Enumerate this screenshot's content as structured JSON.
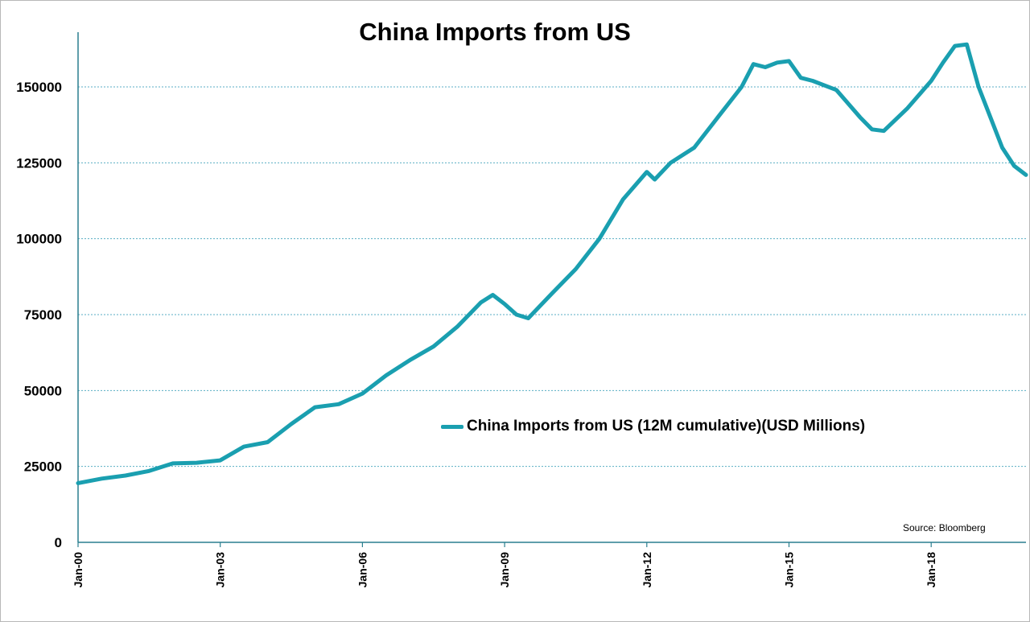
{
  "chart_data": {
    "type": "line",
    "title": "China Imports from US",
    "xlabel": "",
    "ylabel": "",
    "x_tick_labels": [
      "Jan-00",
      "Jan-03",
      "Jan-06",
      "Jan-09",
      "Jan-12",
      "Jan-15",
      "Jan-18"
    ],
    "y_tick_labels": [
      "0",
      "25000",
      "50000",
      "75000",
      "100000",
      "125000",
      "150000"
    ],
    "ylim": [
      0,
      165000
    ],
    "grid": "horizontal-dashed",
    "legend_position": "center-right",
    "line_color": "#1a9fb0",
    "series": [
      {
        "name": "China Imports from US (12M cumulative)(USD Millions)",
        "points": [
          [
            "2000-01",
            19500
          ],
          [
            "2000-07",
            21000
          ],
          [
            "2001-01",
            22000
          ],
          [
            "2001-07",
            23500
          ],
          [
            "2002-01",
            26000
          ],
          [
            "2002-07",
            26200
          ],
          [
            "2003-01",
            27000
          ],
          [
            "2003-07",
            31500
          ],
          [
            "2004-01",
            33000
          ],
          [
            "2004-07",
            39000
          ],
          [
            "2005-01",
            44500
          ],
          [
            "2005-07",
            45500
          ],
          [
            "2006-01",
            49000
          ],
          [
            "2006-07",
            55000
          ],
          [
            "2007-01",
            60000
          ],
          [
            "2007-07",
            64500
          ],
          [
            "2008-01",
            71000
          ],
          [
            "2008-07",
            79000
          ],
          [
            "2008-10",
            81500
          ],
          [
            "2009-01",
            78500
          ],
          [
            "2009-04",
            75000
          ],
          [
            "2009-07",
            73800
          ],
          [
            "2010-01",
            82000
          ],
          [
            "2010-07",
            90000
          ],
          [
            "2011-01",
            100000
          ],
          [
            "2011-07",
            113000
          ],
          [
            "2012-01",
            122000
          ],
          [
            "2012-03",
            119500
          ],
          [
            "2012-07",
            125000
          ],
          [
            "2013-01",
            130000
          ],
          [
            "2013-07",
            140000
          ],
          [
            "2014-01",
            150000
          ],
          [
            "2014-04",
            157500
          ],
          [
            "2014-07",
            156500
          ],
          [
            "2014-10",
            158000
          ],
          [
            "2015-01",
            158500
          ],
          [
            "2015-04",
            153000
          ],
          [
            "2015-07",
            152000
          ],
          [
            "2016-01",
            149000
          ],
          [
            "2016-07",
            140000
          ],
          [
            "2016-10",
            136000
          ],
          [
            "2017-01",
            135500
          ],
          [
            "2017-07",
            143000
          ],
          [
            "2018-01",
            152000
          ],
          [
            "2018-04",
            158000
          ],
          [
            "2018-07",
            163500
          ],
          [
            "2018-10",
            164000
          ],
          [
            "2019-01",
            150000
          ],
          [
            "2019-07",
            130000
          ],
          [
            "2019-10",
            124000
          ],
          [
            "2020-01",
            121000
          ]
        ]
      }
    ],
    "source": "Source: Bloomberg"
  }
}
